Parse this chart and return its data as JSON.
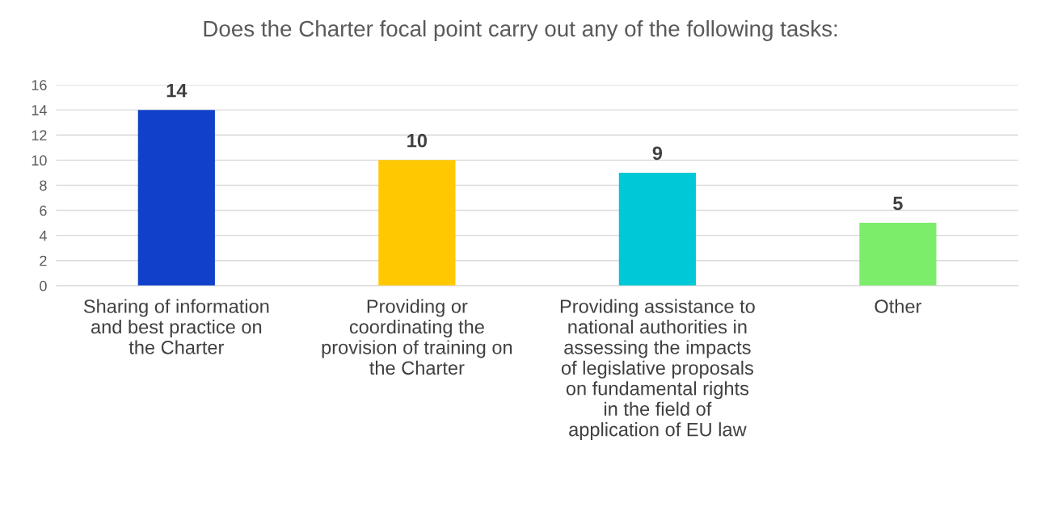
{
  "chart_data": {
    "type": "bar",
    "title": "Does the Charter focal point carry out any of the following tasks:",
    "categories": [
      "Sharing of information\nand best practice on\nthe Charter",
      "Providing or\ncoordinating the\nprovision of training on\nthe Charter",
      "Providing assistance to\nnational authorities in\nassessing the impacts\nof legislative proposals\non fundamental rights\nin the field of\napplication of EU law",
      "Other"
    ],
    "values": [
      14,
      10,
      9,
      5
    ],
    "colors": [
      "#1141c9",
      "#ffc800",
      "#00c8d6",
      "#7bed6a"
    ],
    "ylim": [
      0,
      16
    ],
    "yticks": [
      0,
      2,
      4,
      6,
      8,
      10,
      12,
      14,
      16
    ],
    "grid": "y",
    "data_labels": true
  }
}
